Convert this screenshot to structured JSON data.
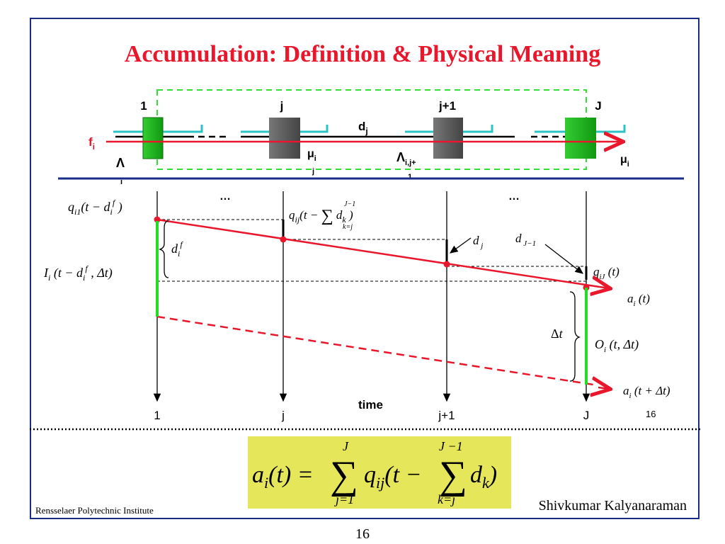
{
  "slide": {
    "title": "Accumulation: Definition & Physical Meaning",
    "slide_number": "16",
    "page_number": "16",
    "footer_left": "Rensselaer Polytechnic Institute",
    "footer_right": "Shivkumar Kalyanaraman"
  },
  "network": {
    "router_labels": [
      "1",
      "j",
      "j+1",
      "J"
    ],
    "flow_label": "f",
    "flow_sub": "i",
    "link_delay_label": "d",
    "link_delay_sub": "j",
    "mu_label": "μ",
    "mu_sub": "i",
    "mu_sub2": "j",
    "mu_right_label": "μ",
    "mu_right_sub": "i",
    "lambda_left": "Λ",
    "lambda_left_sub": "i",
    "lambda_mid": "Λ",
    "lambda_mid_sub": "i,j+",
    "lambda_mid_sub2": "1",
    "dots": "…"
  },
  "timeline": {
    "axis_labels": [
      "1",
      "j",
      "j+1",
      "J"
    ],
    "time_label": "time"
  },
  "colors": {
    "title": "#e8172c",
    "frame": "#1a2c8a",
    "green_router": "#22bb22",
    "gray_router": "#666666",
    "arrow_red": "#e8172c",
    "accent_cyan": "#2bc4c4",
    "green_bar": "#22dd22",
    "formula_bg": "#e6e65a"
  }
}
